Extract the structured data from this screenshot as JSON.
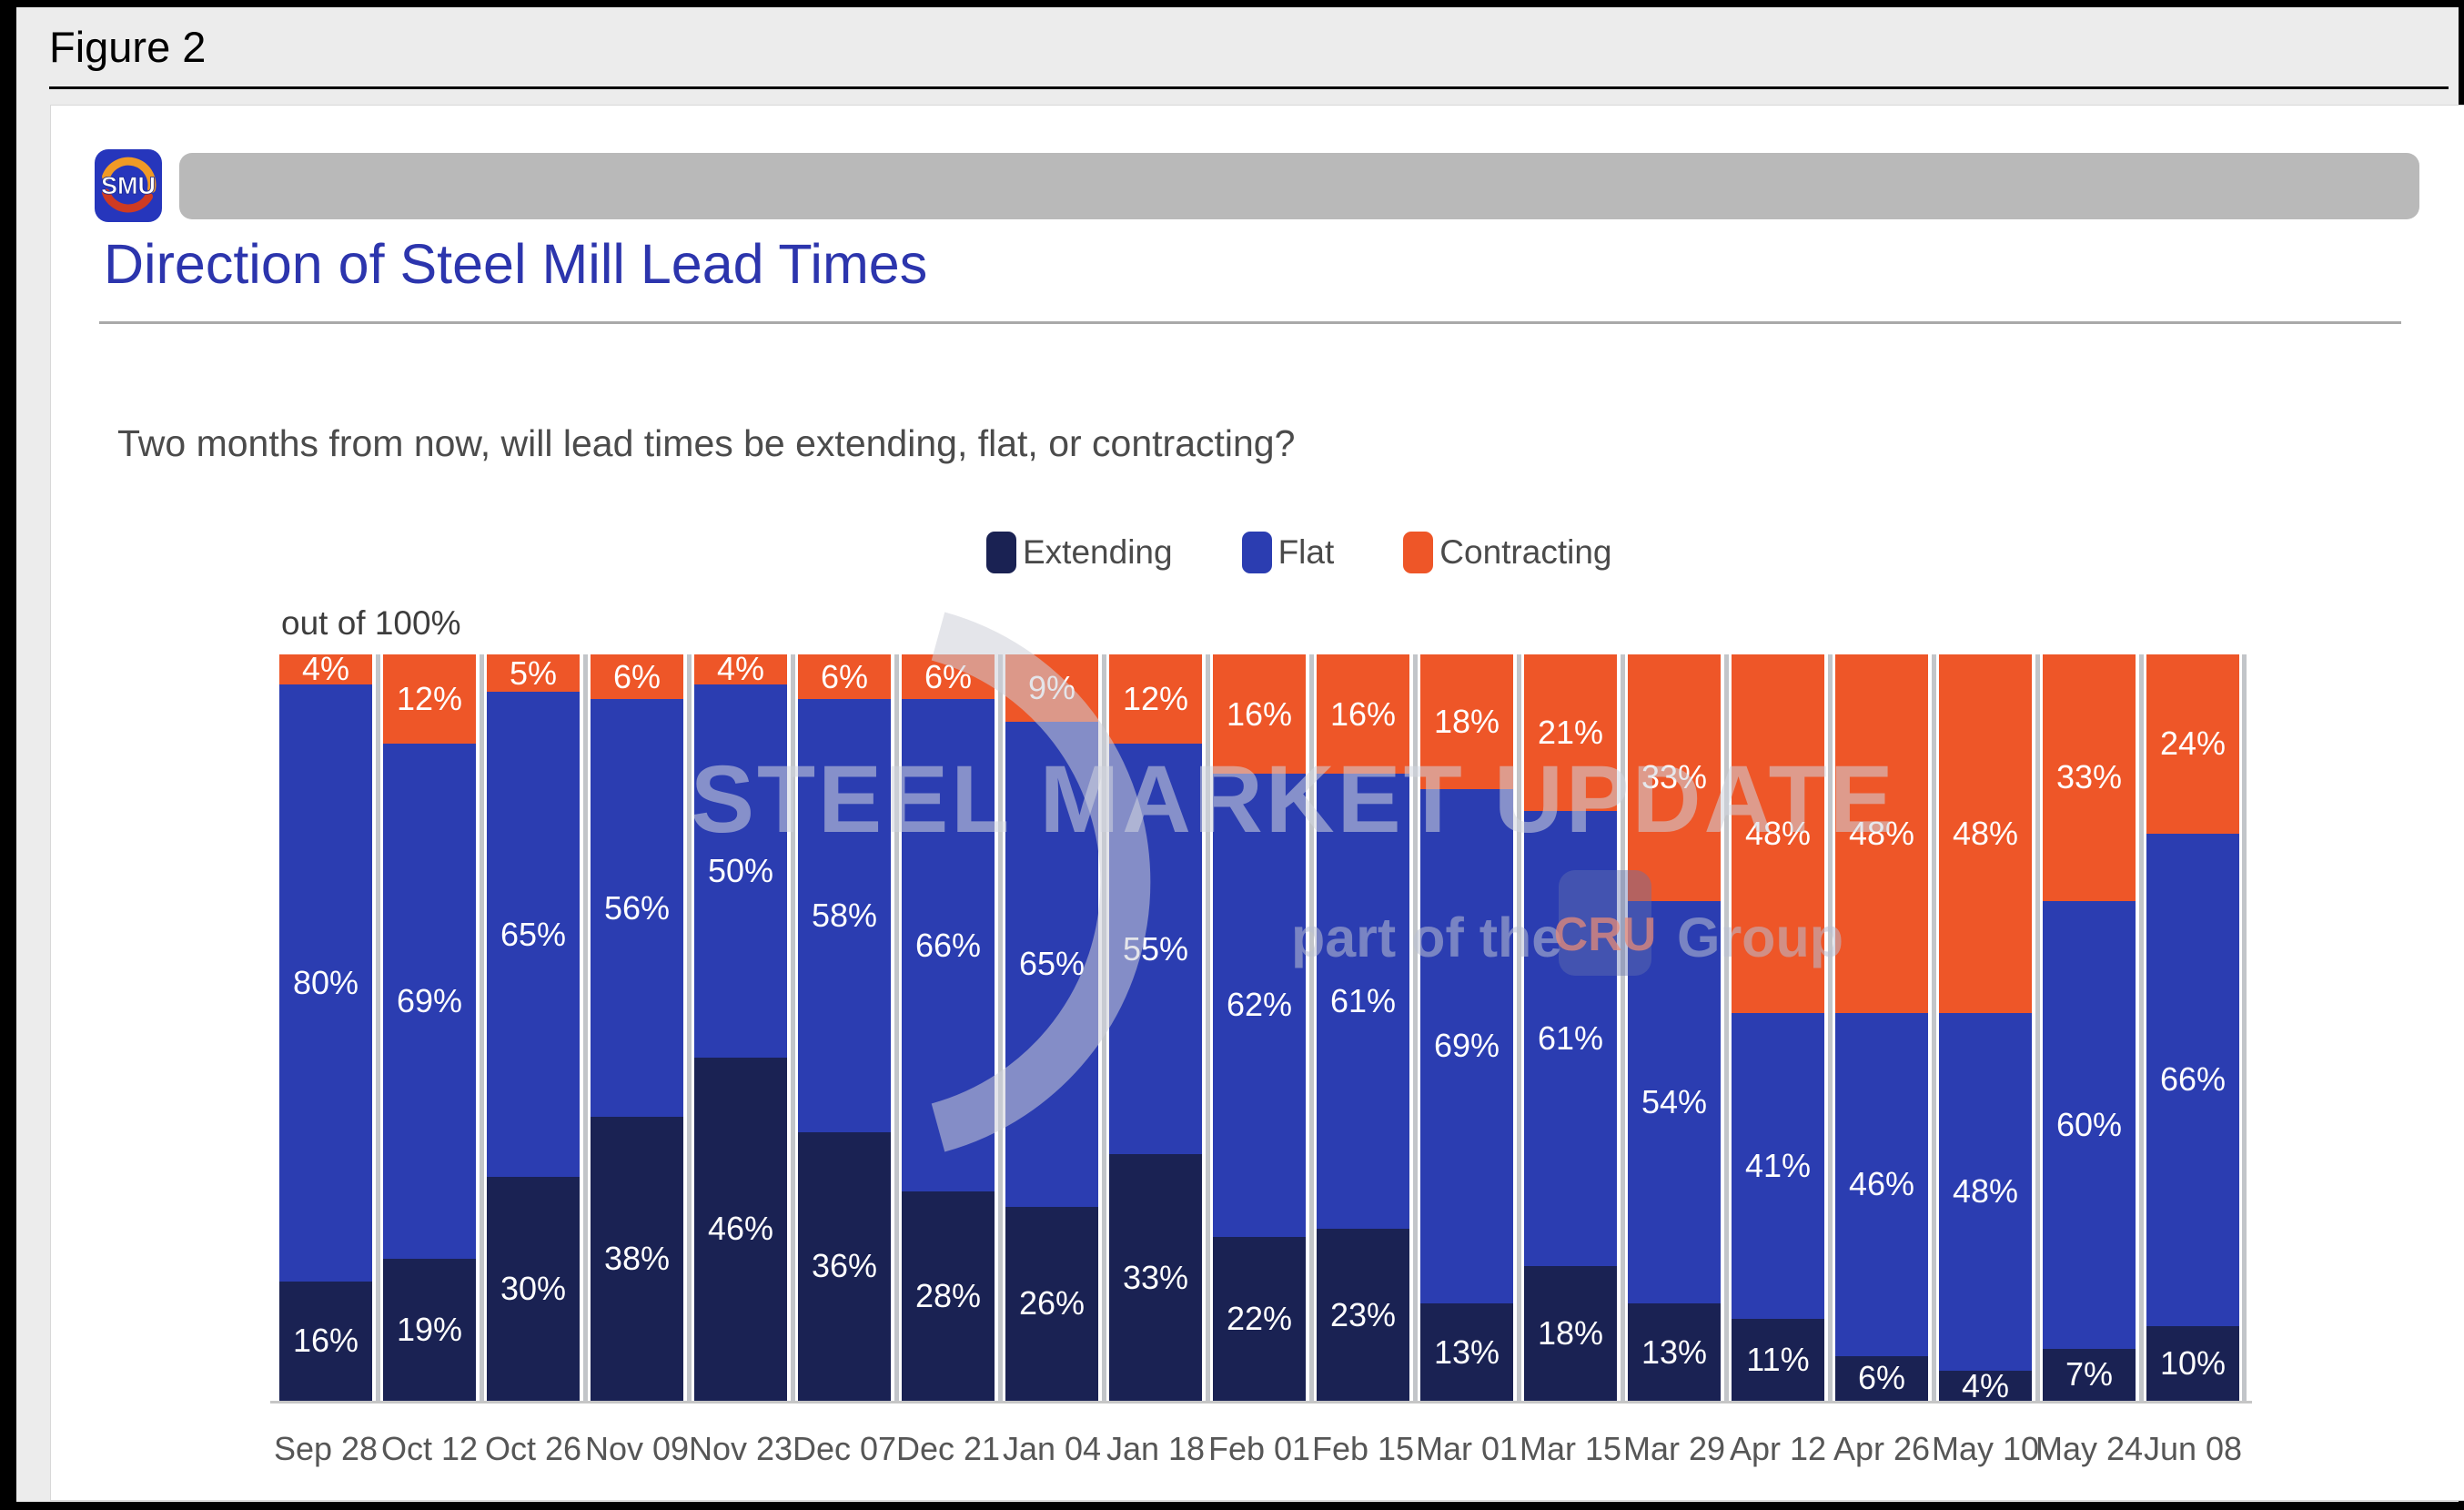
{
  "figure": {
    "label": "Figure 2"
  },
  "header": {
    "logo_text": "SMU",
    "title": "Direction of Steel Mill Lead Times",
    "subtitle": "Two months from now, will lead times be extending, flat, or contracting?"
  },
  "axis_note": "out of 100%",
  "watermark": {
    "line1": "STEEL MARKET UPDATE",
    "line2_prefix": "part of the",
    "line2_logo": "CRU",
    "line2_suffix": "Group"
  },
  "colors": {
    "extending": "#1a2253",
    "flat": "#2b3db1",
    "contracting": "#ee5628",
    "title_blue": "#2c35ad",
    "panel_bg": "#ffffff",
    "outer_bg": "#ececec",
    "pill_gray": "#b9b9b9"
  },
  "chart_data": {
    "type": "bar",
    "stacked": true,
    "out_of": 100,
    "ylim": [
      0,
      100
    ],
    "grid": false,
    "legend_position": "top",
    "title": "Direction of Steel Mill Lead Times",
    "subtitle": "Two months from now, will lead times be extending, flat, or contracting?",
    "categories": [
      "Sep 28",
      "Oct 12",
      "Oct 26",
      "Nov 09",
      "Nov 23",
      "Dec 07",
      "Dec 21",
      "Jan 04",
      "Jan 18",
      "Feb 01",
      "Feb 15",
      "Mar 01",
      "Mar 15",
      "Mar 29",
      "Apr 12",
      "Apr 26",
      "May 10",
      "May 24",
      "Jun 08"
    ],
    "series": [
      {
        "name": "Extending",
        "color": "#1a2253",
        "values": [
          16,
          19,
          30,
          38,
          46,
          36,
          28,
          26,
          33,
          22,
          23,
          13,
          18,
          13,
          11,
          6,
          4,
          7,
          10
        ]
      },
      {
        "name": "Flat",
        "color": "#2b3db1",
        "values": [
          80,
          69,
          65,
          56,
          50,
          58,
          66,
          65,
          55,
          62,
          61,
          69,
          61,
          54,
          41,
          46,
          48,
          60,
          66
        ]
      },
      {
        "name": "Contracting",
        "color": "#ee5628",
        "values": [
          4,
          12,
          5,
          6,
          4,
          6,
          6,
          9,
          12,
          16,
          16,
          18,
          21,
          33,
          48,
          48,
          48,
          33,
          24
        ]
      }
    ]
  }
}
